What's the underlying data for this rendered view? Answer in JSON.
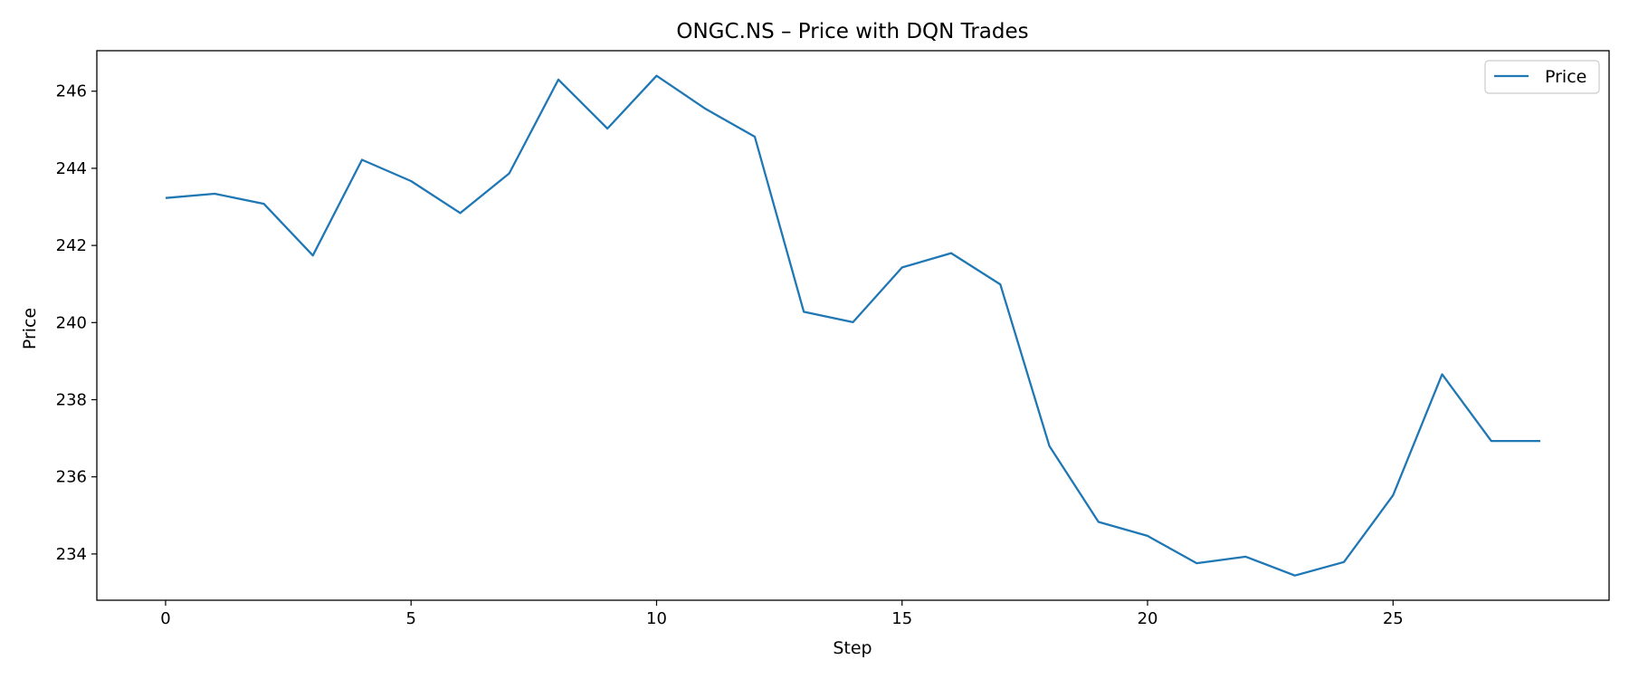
{
  "chart_data": {
    "type": "line",
    "title": "ONGC.NS – Price with DQN Trades",
    "xlabel": "Step",
    "ylabel": "Price",
    "xlim": [
      -1.4,
      29.4
    ],
    "ylim": [
      232.8,
      247.05
    ],
    "xticks": [
      0,
      5,
      10,
      15,
      20,
      25
    ],
    "yticks": [
      234,
      236,
      238,
      240,
      242,
      244,
      246
    ],
    "grid": false,
    "legend_position": "top-right",
    "series": [
      {
        "name": "Price",
        "color": "#1f77b4",
        "x": [
          0,
          1,
          2,
          3,
          4,
          5,
          6,
          7,
          8,
          9,
          10,
          11,
          12,
          13,
          14,
          15,
          16,
          17,
          18,
          19,
          20,
          21,
          22,
          23,
          24,
          25,
          26,
          27,
          28
        ],
        "y": [
          243.23,
          243.34,
          243.08,
          241.74,
          244.22,
          243.67,
          242.84,
          243.87,
          246.3,
          245.03,
          246.4,
          245.54,
          244.82,
          240.28,
          240.01,
          241.43,
          241.8,
          240.99,
          236.8,
          234.83,
          234.47,
          233.76,
          233.93,
          233.44,
          233.79,
          235.52,
          238.66,
          236.93,
          236.93
        ]
      }
    ]
  }
}
